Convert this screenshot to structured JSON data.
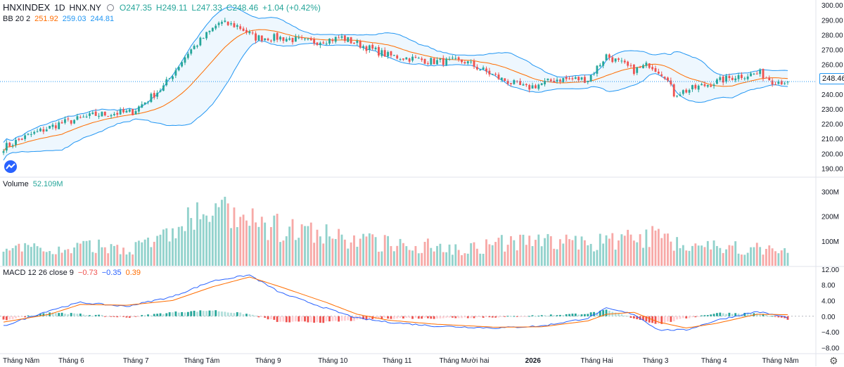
{
  "header": {
    "symbol": "HNXINDEX",
    "interval": "1D",
    "exchange": "HNX.NY",
    "open": "O247.35",
    "high": "H249.11",
    "low": "L247.33",
    "close": "C248.46",
    "change": "+1.04 (+0.42%)"
  },
  "bb_legend": {
    "label": "BB 20 2",
    "basis": "251.92",
    "upper": "259.03",
    "lower": "244.81"
  },
  "volume_legend": {
    "label": "Volume",
    "value": "52.109M"
  },
  "macd_legend": {
    "label": "MACD 12 26 close 9",
    "hist": "−0.73",
    "macd": "−0.35",
    "signal": "0.39"
  },
  "last_price": "248.46",
  "colors": {
    "up": "#26a69a",
    "down": "#ef5350",
    "bb": "#2196f3",
    "basis": "#ff6d00",
    "macd": "#2962ff",
    "signal": "#ff6d00"
  },
  "chart_data": {
    "type": "candlestick",
    "price_axis": {
      "ticks": [
        "300.00",
        "290.00",
        "280.00",
        "270.00",
        "260.00",
        "250.00",
        "240.00",
        "230.00",
        "220.00",
        "210.00",
        "200.00",
        "190.00"
      ],
      "ylim": [
        185,
        302
      ]
    },
    "volume_axis": {
      "ticks": [
        "300M",
        "200M",
        "100M"
      ],
      "ylim": [
        0,
        330
      ]
    },
    "macd_axis": {
      "ticks": [
        "12.00",
        "8.00",
        "4.00",
        "0.00",
        "−4.00",
        "−8.00"
      ],
      "ylim": [
        -9,
        12.5
      ]
    },
    "x_labels": [
      "Tháng Năm",
      "Tháng 6",
      "Tháng 7",
      "Tháng Tám",
      "Tháng 9",
      "Tháng 10",
      "Tháng 11",
      "Tháng Mười hai",
      "2026",
      "Tháng Hai",
      "Tháng 3",
      "Tháng 4",
      "Tháng Năm"
    ],
    "x_label_positions": [
      0,
      22,
      43,
      64,
      86,
      107,
      128,
      150,
      172,
      193,
      212,
      231,
      252
    ],
    "close_anchors": [
      [
        0,
        204
      ],
      [
        8,
        212
      ],
      [
        18,
        220
      ],
      [
        30,
        226
      ],
      [
        42,
        228
      ],
      [
        52,
        245
      ],
      [
        60,
        268
      ],
      [
        70,
        288
      ],
      [
        76,
        286
      ],
      [
        82,
        278
      ],
      [
        90,
        278
      ],
      [
        100,
        275
      ],
      [
        110,
        278
      ],
      [
        125,
        266
      ],
      [
        140,
        262
      ],
      [
        150,
        262
      ],
      [
        162,
        250
      ],
      [
        170,
        244
      ],
      [
        180,
        250
      ],
      [
        190,
        250
      ],
      [
        196,
        266
      ],
      [
        205,
        256
      ],
      [
        210,
        260
      ],
      [
        215,
        253
      ],
      [
        218,
        240
      ],
      [
        228,
        246
      ],
      [
        238,
        252
      ],
      [
        246,
        254
      ],
      [
        250,
        249
      ],
      [
        255,
        248.46
      ]
    ],
    "volume_anchors": [
      [
        0,
        60
      ],
      [
        10,
        70
      ],
      [
        20,
        60
      ],
      [
        28,
        80
      ],
      [
        40,
        70
      ],
      [
        50,
        100
      ],
      [
        58,
        160
      ],
      [
        66,
        220
      ],
      [
        72,
        200
      ],
      [
        80,
        170
      ],
      [
        90,
        150
      ],
      [
        100,
        130
      ],
      [
        110,
        110
      ],
      [
        125,
        90
      ],
      [
        140,
        80
      ],
      [
        150,
        70
      ],
      [
        162,
        90
      ],
      [
        175,
        100
      ],
      [
        190,
        90
      ],
      [
        205,
        110
      ],
      [
        212,
        120
      ],
      [
        220,
        90
      ],
      [
        232,
        80
      ],
      [
        245,
        70
      ],
      [
        255,
        52
      ]
    ],
    "macd_anchors": [
      [
        0,
        -2.5
      ],
      [
        15,
        1.5
      ],
      [
        25,
        3.5
      ],
      [
        40,
        2.5
      ],
      [
        55,
        5
      ],
      [
        68,
        9
      ],
      [
        80,
        10.5
      ],
      [
        90,
        6
      ],
      [
        105,
        2
      ],
      [
        115,
        -0.5
      ],
      [
        125,
        -1.5
      ],
      [
        140,
        -2.5
      ],
      [
        160,
        -3
      ],
      [
        175,
        -2.5
      ],
      [
        190,
        -0.5
      ],
      [
        196,
        2
      ],
      [
        205,
        0.5
      ],
      [
        213,
        -3.5
      ],
      [
        222,
        -3.5
      ],
      [
        232,
        -1
      ],
      [
        245,
        1.2
      ],
      [
        255,
        -0.35
      ]
    ],
    "signal_anchors": [
      [
        0,
        -1.5
      ],
      [
        15,
        0.5
      ],
      [
        25,
        3
      ],
      [
        40,
        2.8
      ],
      [
        55,
        4
      ],
      [
        68,
        7.5
      ],
      [
        80,
        10
      ],
      [
        90,
        7.5
      ],
      [
        105,
        3.5
      ],
      [
        115,
        0.5
      ],
      [
        125,
        -1
      ],
      [
        140,
        -2
      ],
      [
        160,
        -2.8
      ],
      [
        175,
        -2.7
      ],
      [
        190,
        -1.2
      ],
      [
        196,
        0.5
      ],
      [
        205,
        1
      ],
      [
        213,
        -1.5
      ],
      [
        222,
        -3
      ],
      [
        232,
        -1.8
      ],
      [
        245,
        0.5
      ],
      [
        255,
        0.39
      ]
    ],
    "n_bars": 256,
    "bb_period": 20,
    "bb_mult": 2
  }
}
